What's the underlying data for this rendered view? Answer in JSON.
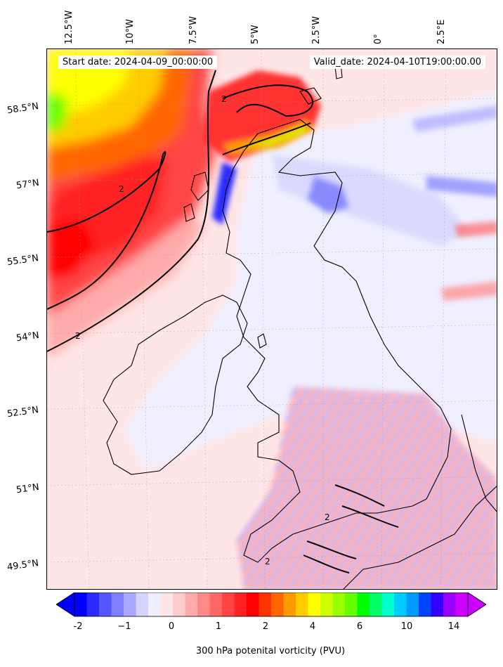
{
  "header": {
    "start_date": "Start date: 2024-04-09_00:00:00",
    "valid_date": "Valid_date: 2024-04-10T19:00:00.00"
  },
  "longitude_labels": [
    "12.5°W",
    "10°W",
    "7.5°W",
    "5°W",
    "2.5°W",
    "0°",
    "2.5°E"
  ],
  "latitude_labels": [
    "58.5°N",
    "57°N",
    "55.5°N",
    "54°N",
    "52.5°N",
    "51°N",
    "49.5°N"
  ],
  "contour_labels": [
    "2",
    "2",
    "2",
    "2",
    "2"
  ],
  "colorbar": {
    "tick_labels": [
      "-2",
      "−1",
      "0",
      "1",
      "2",
      "4",
      "6",
      "10",
      "14"
    ],
    "label": "300 hPa potenital vorticity (PVU)",
    "colors": [
      "#0000ff",
      "#2a2aff",
      "#5555ff",
      "#7f7fff",
      "#a9a9ff",
      "#d4d4ff",
      "#efefff",
      "#ffe6e6",
      "#ffcccc",
      "#ffaaaa",
      "#ff8888",
      "#ff6666",
      "#ff4444",
      "#ff2222",
      "#ff0000",
      "#ff3300",
      "#ff6600",
      "#ff9900",
      "#ffcc00",
      "#ffff00",
      "#ccff00",
      "#99ff00",
      "#66ff00",
      "#00ff00",
      "#00ff66",
      "#00ffcc",
      "#00ccff",
      "#0099ff",
      "#0044ff",
      "#3300ff",
      "#9900ff",
      "#cc00ff"
    ]
  }
}
